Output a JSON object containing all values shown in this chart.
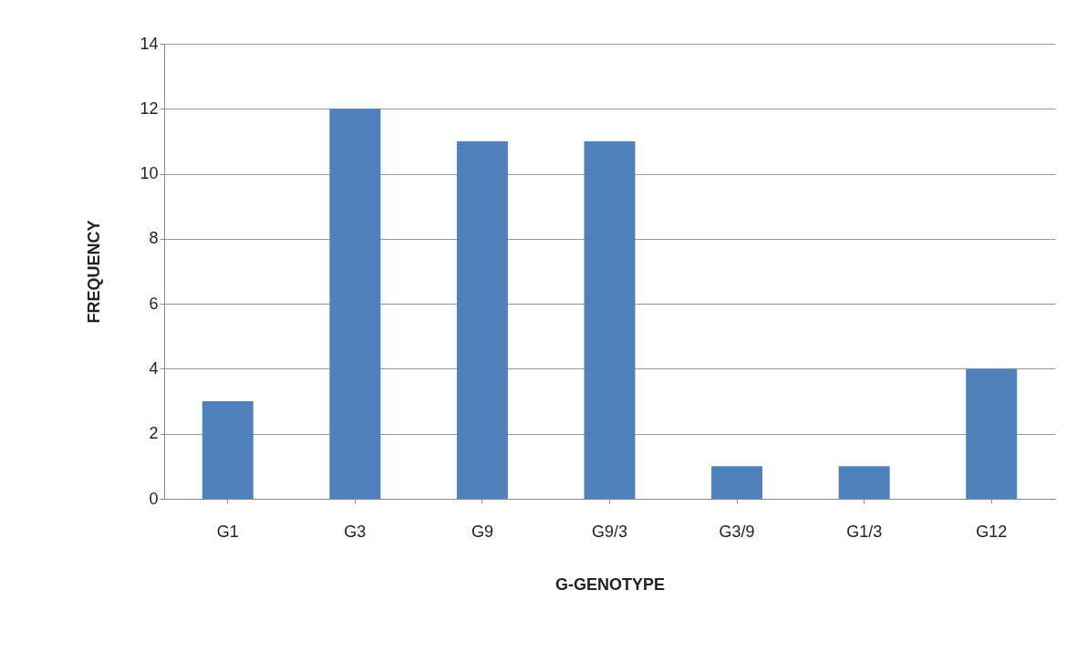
{
  "chart_data": {
    "type": "bar",
    "xlabel": "G-GENOTYPE",
    "ylabel": "FREQUENCY",
    "categories": [
      "G1",
      "G3",
      "G9",
      "G9/3",
      "G3/9",
      "G1/3",
      "G12"
    ],
    "values": [
      3,
      12,
      11,
      11,
      1,
      1,
      4
    ],
    "color": "#4f81bd",
    "ylim": [
      0,
      14
    ],
    "yticks": [
      0,
      2,
      4,
      6,
      8,
      10,
      12,
      14
    ],
    "grid": "y"
  }
}
